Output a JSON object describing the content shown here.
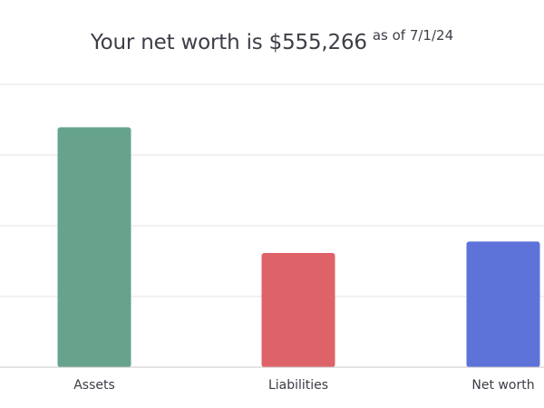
{
  "title": {
    "main": "Your net worth is $555,266",
    "sub": "as of 7/1/24"
  },
  "colors": {
    "assets": "#67a38c",
    "liabilities": "#de6369",
    "net_worth": "#5d73d9",
    "gridline": "#e3e3e3",
    "baseline": "#c9c9c9"
  },
  "chart_data": {
    "type": "bar",
    "categories": [
      "Assets",
      "Liabilities",
      "Net worth"
    ],
    "values": [
      1060000,
      505000,
      555266
    ],
    "ylim": [
      0,
      1250000
    ],
    "grid": true,
    "xlabel": "",
    "ylabel": ""
  }
}
